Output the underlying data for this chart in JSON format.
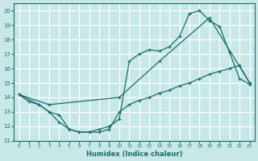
{
  "xlabel": "Humidex (Indice chaleur)",
  "bg_color": "#c8e8e8",
  "grid_color": "#ffffff",
  "line_color": "#1a6b6b",
  "xlim": [
    -0.5,
    23.5
  ],
  "ylim": [
    11,
    20.5
  ],
  "xticks": [
    0,
    1,
    2,
    3,
    4,
    5,
    6,
    7,
    8,
    9,
    10,
    11,
    12,
    13,
    14,
    15,
    16,
    17,
    18,
    19,
    20,
    21,
    22,
    23
  ],
  "yticks": [
    11,
    12,
    13,
    14,
    15,
    16,
    17,
    18,
    19,
    20
  ],
  "line1_x": [
    0,
    3,
    10,
    14,
    19,
    23
  ],
  "line1_y": [
    14.2,
    13.5,
    14.0,
    16.5,
    19.5,
    15.0
  ],
  "line2_x": [
    0,
    2,
    3,
    4,
    5,
    6,
    7,
    8,
    9,
    10,
    11,
    12,
    13,
    14,
    15,
    16,
    17,
    18,
    19,
    20,
    21,
    22,
    23
  ],
  "line2_y": [
    14.2,
    13.5,
    13.0,
    12.3,
    11.8,
    11.6,
    11.6,
    11.8,
    12.0,
    12.5,
    16.5,
    17.0,
    17.3,
    17.2,
    17.5,
    18.2,
    19.8,
    20.0,
    19.3,
    18.9,
    17.1,
    15.3,
    14.9
  ],
  "line3_x": [
    0,
    1,
    2,
    3,
    4,
    5,
    6,
    7,
    8,
    9,
    10,
    11,
    12,
    13,
    14,
    15,
    16,
    17,
    18,
    19,
    20,
    21,
    22,
    23
  ],
  "line3_y": [
    14.2,
    13.7,
    13.5,
    13.0,
    12.8,
    11.8,
    11.6,
    11.6,
    11.6,
    11.8,
    13.0,
    13.5,
    13.8,
    14.0,
    14.3,
    14.5,
    14.8,
    15.0,
    15.3,
    15.6,
    15.8,
    16.0,
    16.2,
    15.0
  ]
}
